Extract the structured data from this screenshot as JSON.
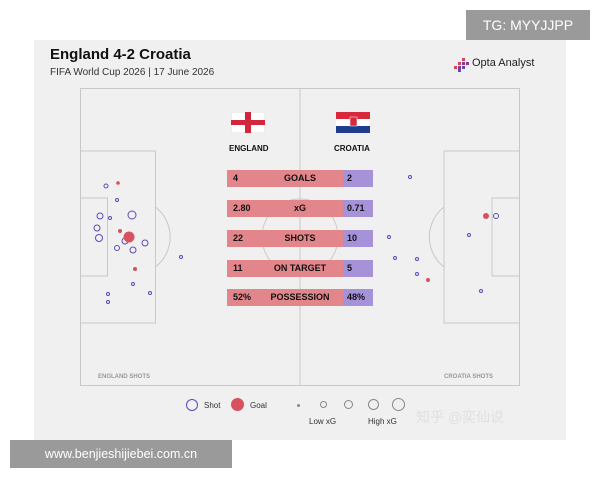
{
  "tag_label": "TG: MYYJJPP",
  "header": {
    "title": "England 4-2 Croatia",
    "subtitle": "FIFA World Cup 2026 | 17 June 2026",
    "brand": "Opta Analyst"
  },
  "teams": {
    "home": {
      "name": "ENGLAND",
      "shots_label": "ENGLAND SHOTS"
    },
    "away": {
      "name": "CROATIA",
      "shots_label": "CROATIA SHOTS"
    }
  },
  "stats": [
    {
      "label": "GOALS",
      "home": "4",
      "away": "2"
    },
    {
      "label": "xG",
      "home": "2.80",
      "away": "0.71"
    },
    {
      "label": "SHOTS",
      "home": "22",
      "away": "10"
    },
    {
      "label": "ON TARGET",
      "home": "11",
      "away": "5"
    },
    {
      "label": "POSSESSION",
      "home": "52%",
      "away": "48%"
    }
  ],
  "legend": {
    "shot": "Shot",
    "goal": "Goal",
    "low_xg": "Low xG",
    "high_xg": "High xG"
  },
  "colors": {
    "home": "#e2868c",
    "away": "#a592d9",
    "goal": "#d9505e",
    "shot_ring": "#5b4bb7"
  },
  "watermark": "知乎 @奕仙说",
  "bottom_bar": "www.benjieshijiebei.com.cn"
}
